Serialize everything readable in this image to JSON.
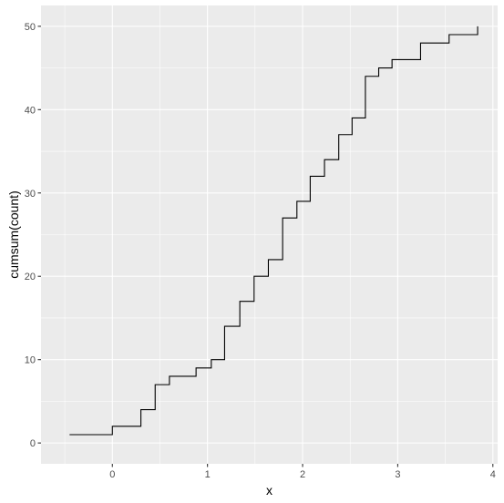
{
  "chart_data": {
    "type": "line",
    "step": true,
    "xlabel": "x",
    "ylabel": "cumsum(count)",
    "xlim": [
      -0.75,
      4.05
    ],
    "ylim": [
      -2.5,
      52.5
    ],
    "x_ticks": [
      0,
      1,
      2,
      3,
      4
    ],
    "y_ticks": [
      0,
      10,
      20,
      30,
      40,
      50
    ],
    "x_tick_labels": [
      "0",
      "1",
      "2",
      "3",
      "4"
    ],
    "y_tick_labels": [
      "0",
      "10",
      "20",
      "30",
      "40",
      "50"
    ],
    "grid": true,
    "legend": "none",
    "colors": {
      "panel": "#ebebeb",
      "grid": "#ffffff",
      "line": "#000000"
    },
    "series": [
      {
        "x": [
          -0.45,
          0.0,
          0.3,
          0.45,
          0.6,
          0.88,
          1.04,
          1.18,
          1.34,
          1.49,
          1.64,
          1.79,
          1.94,
          2.08,
          2.23,
          2.38,
          2.52,
          2.66,
          2.8,
          2.94,
          3.24,
          3.54,
          3.84
        ],
        "y": [
          1,
          2,
          4,
          7,
          8,
          9,
          10,
          14,
          17,
          20,
          22,
          27,
          29,
          32,
          34,
          37,
          39,
          44,
          45,
          46,
          48,
          49,
          50
        ]
      }
    ]
  }
}
